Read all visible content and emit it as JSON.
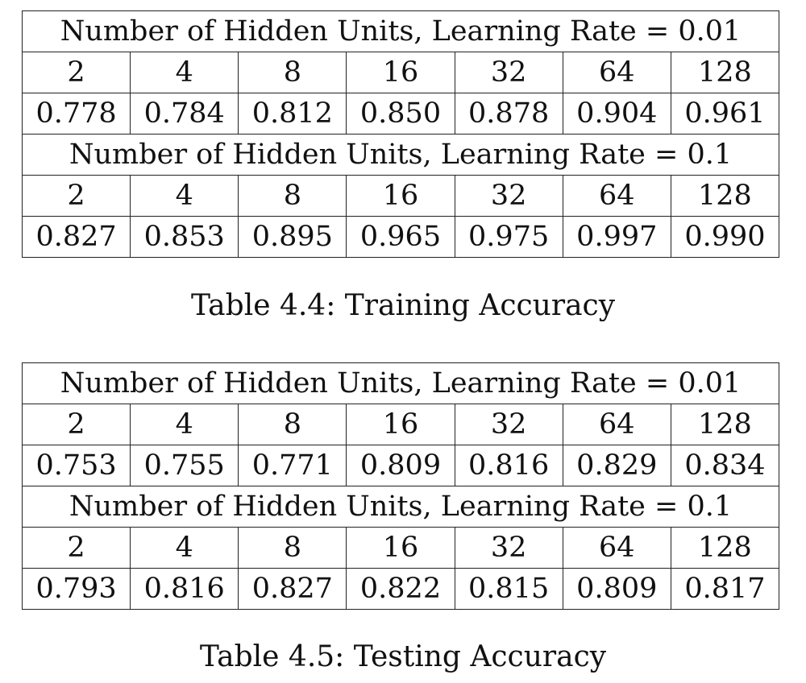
{
  "tables": [
    {
      "caption": "Table 4.4: Training Accuracy",
      "blocks": [
        {
          "header": "Number of Hidden Units, Learning Rate = 0.01",
          "units": [
            "2",
            "4",
            "8",
            "16",
            "32",
            "64",
            "128"
          ],
          "accuracy": [
            "0.778",
            "0.784",
            "0.812",
            "0.850",
            "0.878",
            "0.904",
            "0.961"
          ]
        },
        {
          "header": "Number of Hidden Units, Learning Rate = 0.1",
          "units": [
            "2",
            "4",
            "8",
            "16",
            "32",
            "64",
            "128"
          ],
          "accuracy": [
            "0.827",
            "0.853",
            "0.895",
            "0.965",
            "0.975",
            "0.997",
            "0.990"
          ]
        }
      ]
    },
    {
      "caption": "Table 4.5: Testing Accuracy",
      "blocks": [
        {
          "header": "Number of Hidden Units, Learning Rate = 0.01",
          "units": [
            "2",
            "4",
            "8",
            "16",
            "32",
            "64",
            "128"
          ],
          "accuracy": [
            "0.753",
            "0.755",
            "0.771",
            "0.809",
            "0.816",
            "0.829",
            "0.834"
          ]
        },
        {
          "header": "Number of Hidden Units, Learning Rate = 0.1",
          "units": [
            "2",
            "4",
            "8",
            "16",
            "32",
            "64",
            "128"
          ],
          "accuracy": [
            "0.793",
            "0.816",
            "0.827",
            "0.822",
            "0.815",
            "0.809",
            "0.817"
          ]
        }
      ]
    }
  ]
}
